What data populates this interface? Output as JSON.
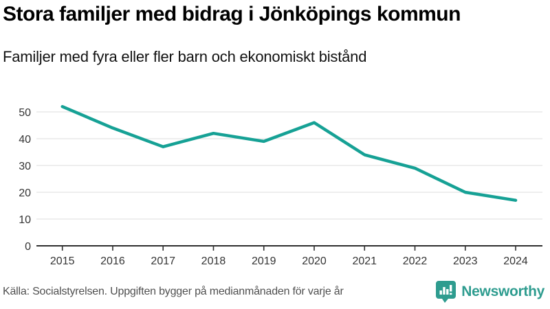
{
  "header": {
    "title": "Stora familjer med bidrag i Jönköpings kommun",
    "subtitle": "Familjer med fyra eller fler barn och ekonomiskt bistånd"
  },
  "footer": {
    "source": "Källa: Socialstyrelsen. Uppgiften bygger på medianmånaden för varje år",
    "brand": "Newsworthy"
  },
  "colors": {
    "line": "#16a195",
    "brand": "#2e9c8f",
    "grid": "#e3e3e3",
    "axis": "#2f2f2f",
    "tick_text": "#333333",
    "source_text": "#4f4f4f"
  },
  "chart_data": {
    "type": "line",
    "categories": [
      "2015",
      "2016",
      "2017",
      "2018",
      "2019",
      "2020",
      "2021",
      "2022",
      "2023",
      "2024"
    ],
    "values": [
      52,
      44,
      37,
      42,
      39,
      46,
      34,
      29,
      20,
      17
    ],
    "series_name": "Familjer med fyra eller fler barn och ekonomiskt bistånd",
    "title": "Stora familjer med bidrag i Jönköpings kommun",
    "xlabel": "",
    "ylabel": "",
    "ylim": [
      0,
      55
    ],
    "yticks": [
      0,
      10,
      20,
      30,
      40,
      50
    ],
    "grid": true,
    "legend": "none",
    "line_color": "#16a195"
  }
}
